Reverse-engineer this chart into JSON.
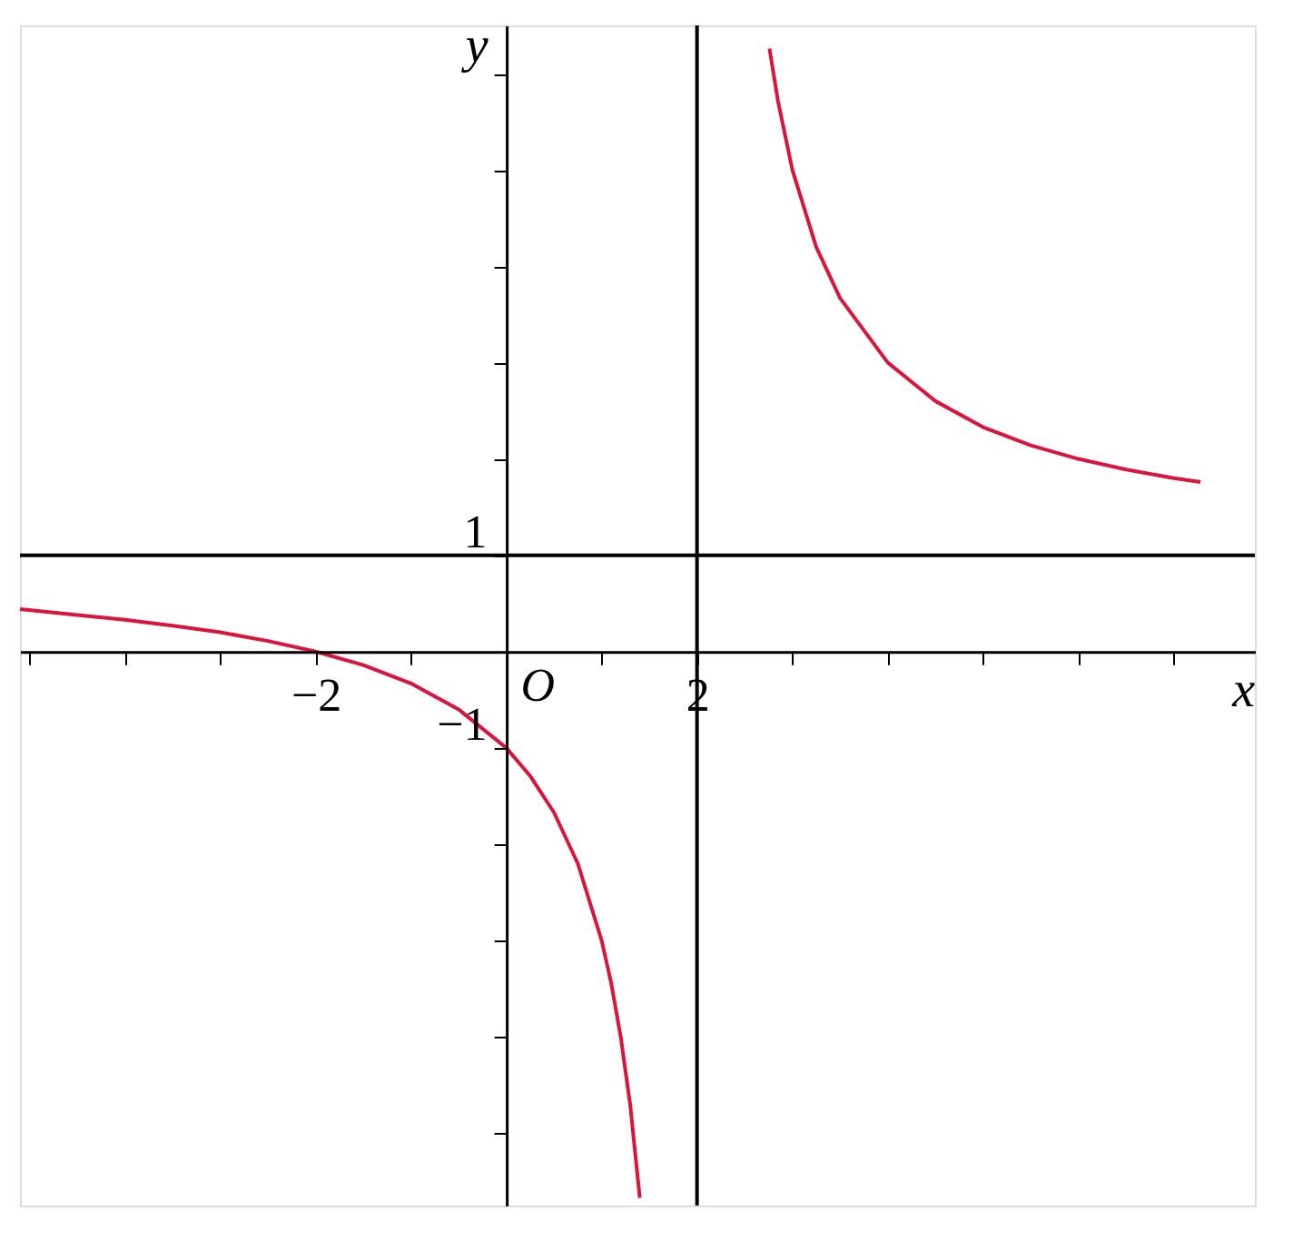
{
  "chart_data": {
    "type": "line",
    "xlabel": "x",
    "ylabel": "y",
    "xlim": [
      -5.1,
      7.85
    ],
    "ylim": [
      -5.75,
      6.5
    ],
    "xticks": [
      {
        "value": -5,
        "label": null
      },
      {
        "value": -4,
        "label": null
      },
      {
        "value": -3,
        "label": null
      },
      {
        "value": -2,
        "label": "−2"
      },
      {
        "value": -1,
        "label": null
      },
      {
        "value": 1,
        "label": null
      },
      2,
      {
        "value": 3,
        "label": null
      },
      {
        "value": 4,
        "label": null
      },
      {
        "value": 5,
        "label": null
      },
      {
        "value": 6,
        "label": null
      },
      {
        "value": 7,
        "label": null
      }
    ],
    "yticks": [
      {
        "value": -5,
        "label": null
      },
      {
        "value": -4,
        "label": null
      },
      {
        "value": -3,
        "label": null
      },
      {
        "value": -2,
        "label": null
      },
      {
        "value": -1,
        "label": "−1"
      },
      1,
      {
        "value": 2,
        "label": null
      },
      {
        "value": 3,
        "label": null
      },
      {
        "value": 4,
        "label": null
      },
      {
        "value": 5,
        "label": null
      },
      {
        "value": 6,
        "label": null
      }
    ],
    "series": [
      {
        "color": "#dc143c",
        "x": [
          -5.1,
          -4.5,
          -4,
          -3.5,
          -3,
          -2.5,
          -2,
          -1.5,
          -1,
          -0.5,
          0,
          0.25,
          0.5,
          0.75,
          1,
          1.1,
          1.2,
          1.3,
          1.4
        ],
        "values": [
          0.44,
          0.38,
          0.33,
          0.27,
          0.2,
          0.11,
          0,
          -0.14,
          -0.33,
          -0.6,
          -1,
          -1.29,
          -1.67,
          -2.2,
          -3,
          -3.44,
          -4,
          -4.71,
          -5.67
        ]
      },
      {
        "color": "#dc143c",
        "x": [
          2.76,
          2.85,
          3,
          3.25,
          3.5,
          4,
          4.5,
          5,
          5.5,
          6,
          6.5,
          7,
          7.28
        ],
        "values": [
          6.26,
          5.71,
          5,
          4.2,
          3.67,
          3,
          2.6,
          2.33,
          2.14,
          2,
          1.89,
          1.8,
          1.76
        ]
      }
    ],
    "ref_lines": [
      {
        "axis": "x",
        "value": 2,
        "color": "#000000"
      },
      {
        "axis": "y",
        "value": 1,
        "color": "#000000"
      }
    ],
    "annotations": [
      "O"
    ],
    "grid": false,
    "marker": "none",
    "line_style": "solid"
  }
}
